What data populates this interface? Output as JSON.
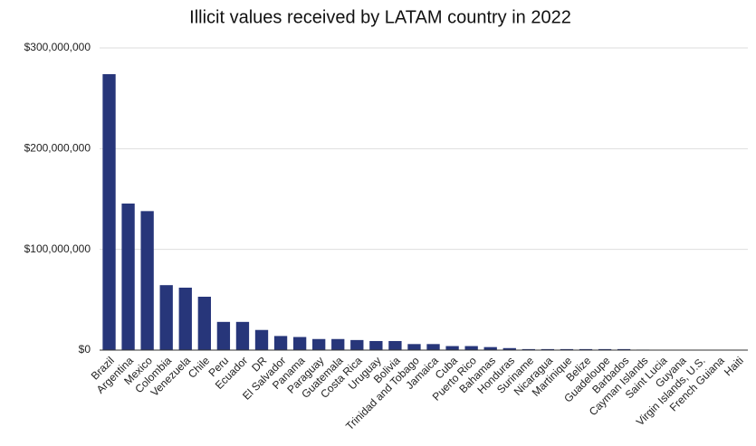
{
  "chart_data": {
    "type": "bar",
    "title": "Illicit values received by LATAM country in 2022",
    "categories": [
      "Brazil",
      "Argentina",
      "Mexico",
      "Colombia",
      "Venezuela",
      "Chile",
      "Peru",
      "Ecuador",
      "DR",
      "El Salvador",
      "Panama",
      "Paraguay",
      "Guatemala",
      "Costa Rica",
      "Uruguay",
      "Bolivia",
      "Trinidad and Tobago",
      "Jamaica",
      "Cuba",
      "Puerto Rico",
      "Bahamas",
      "Honduras",
      "Suriname",
      "Nicaragua",
      "Martinique",
      "Belize",
      "Guadeloupe",
      "Barbados",
      "Cayman Islands",
      "Saint Lucia",
      "Guyana",
      "Virgin Islands, U.S.",
      "French Guiana",
      "Haiti"
    ],
    "values": [
      274000000,
      145500000,
      138000000,
      64500000,
      62000000,
      53000000,
      28000000,
      28000000,
      20000000,
      14000000,
      13000000,
      11000000,
      11000000,
      10000000,
      9000000,
      9000000,
      6000000,
      6000000,
      4000000,
      4000000,
      3000000,
      2000000,
      1000000,
      1000000,
      1000000,
      1000000,
      1000000,
      1000000,
      500000,
      200000,
      200000,
      200000,
      200000,
      200000
    ],
    "color": "#27367a",
    "ylim": [
      0,
      300000000
    ],
    "yticks": [
      {
        "value": 0,
        "label": "$0"
      },
      {
        "value": 100000000,
        "label": "$100,000,000"
      },
      {
        "value": 200000000,
        "label": "$200,000,000"
      },
      {
        "value": 300000000,
        "label": "$300,000,000"
      }
    ],
    "grid": true
  }
}
